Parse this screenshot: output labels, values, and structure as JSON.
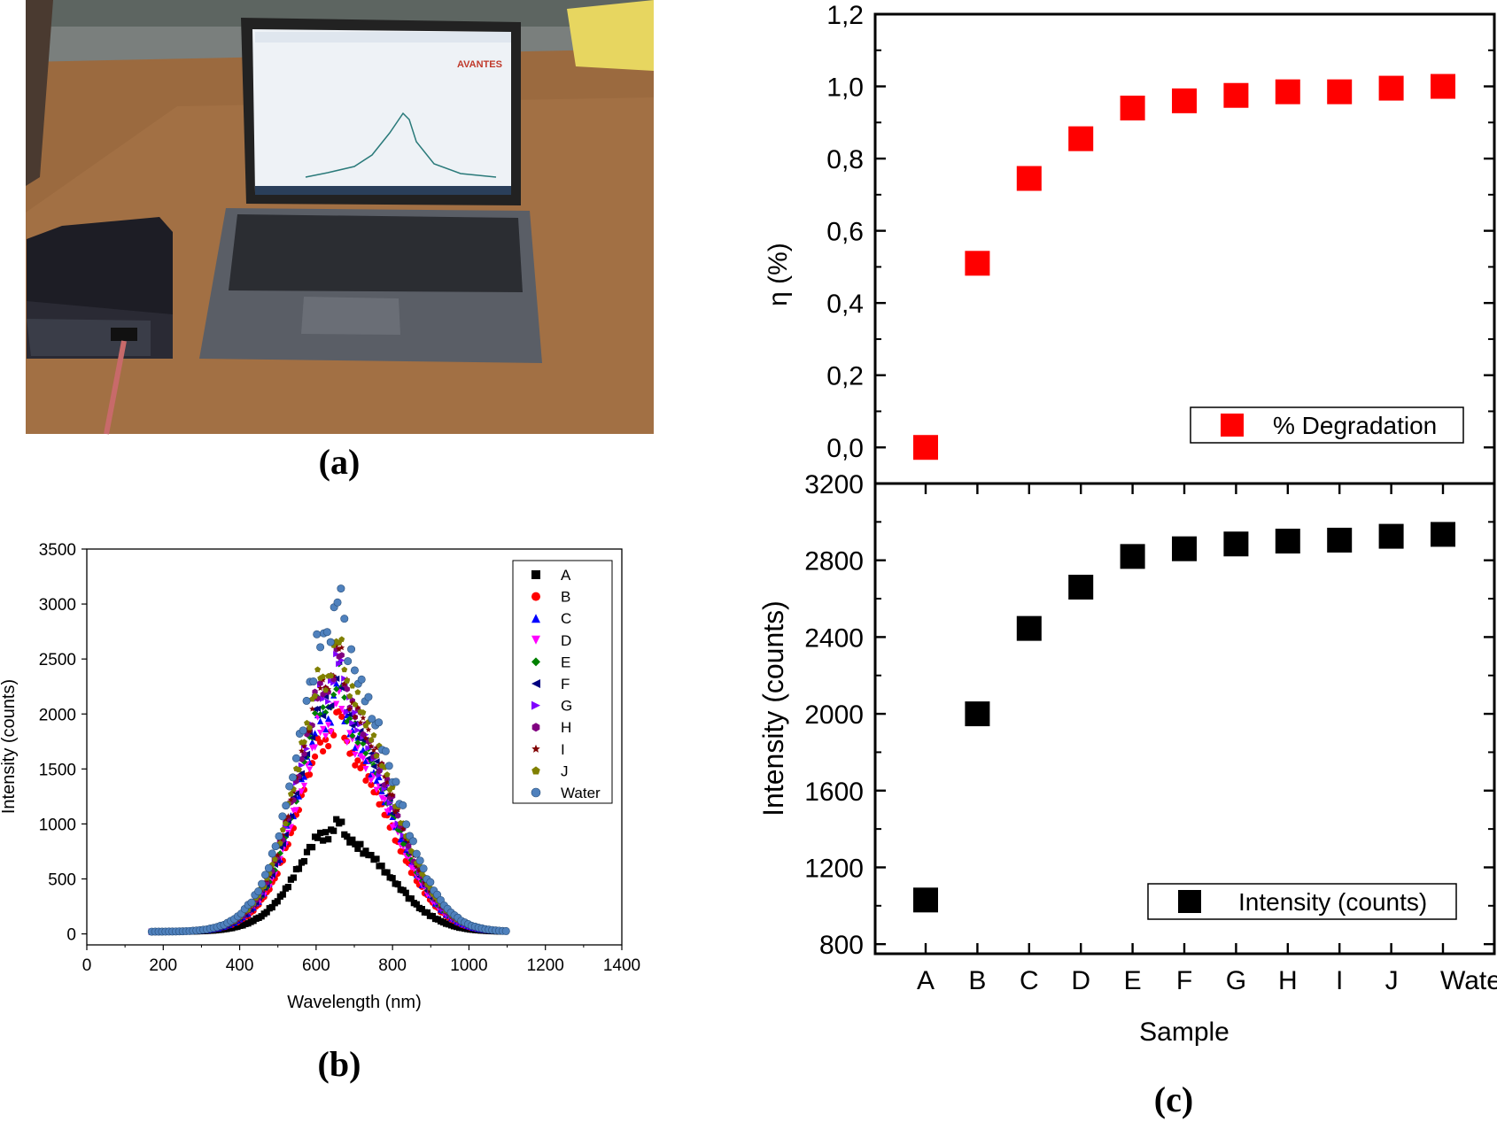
{
  "panels": {
    "a": {
      "caption": "(a)",
      "brand": "AVANTES"
    },
    "b": {
      "caption": "(b)"
    },
    "c": {
      "caption": "(c)"
    }
  },
  "chart_data": [
    {
      "id": "b",
      "type": "scatter",
      "xlabel": "Wavelength (nm)",
      "ylabel": "Intensity (counts)",
      "xlim": [
        0,
        1400
      ],
      "ylim": [
        -100,
        3500
      ],
      "x_ticks": [
        0,
        200,
        400,
        600,
        800,
        1000,
        1200,
        1400
      ],
      "y_ticks": [
        0,
        500,
        1000,
        1500,
        2000,
        2500,
        3000,
        3500
      ],
      "legend_position": "top-right",
      "spectrum_x_range": [
        170,
        1100
      ],
      "series": [
        {
          "name": "A",
          "color": "#000000",
          "marker": "square",
          "peak_x": 660,
          "peak_y": 1000,
          "shoulder_peak_y": 850
        },
        {
          "name": "B",
          "color": "#ff0000",
          "marker": "circle",
          "peak_x": 660,
          "peak_y": 1950,
          "shoulder_peak_y": 1700
        },
        {
          "name": "C",
          "color": "#0000ff",
          "marker": "triangle-up",
          "peak_x": 660,
          "peak_y": 2200,
          "shoulder_peak_y": 2000
        },
        {
          "name": "D",
          "color": "#ff00ff",
          "marker": "triangle-down",
          "peak_x": 660,
          "peak_y": 2100,
          "shoulder_peak_y": 1900
        },
        {
          "name": "E",
          "color": "#008000",
          "marker": "diamond",
          "peak_x": 660,
          "peak_y": 2300,
          "shoulder_peak_y": 2150
        },
        {
          "name": "F",
          "color": "#000080",
          "marker": "triangle-left",
          "peak_x": 660,
          "peak_y": 2350,
          "shoulder_peak_y": 2200
        },
        {
          "name": "G",
          "color": "#8000ff",
          "marker": "triangle-right",
          "peak_x": 660,
          "peak_y": 2450,
          "shoulder_peak_y": 2250
        },
        {
          "name": "H",
          "color": "#800080",
          "marker": "hexagon",
          "peak_x": 660,
          "peak_y": 2500,
          "shoulder_peak_y": 2300
        },
        {
          "name": "I",
          "color": "#800000",
          "marker": "star",
          "peak_x": 660,
          "peak_y": 2550,
          "shoulder_peak_y": 2400
        },
        {
          "name": "J",
          "color": "#808000",
          "marker": "pentagon",
          "peak_x": 660,
          "peak_y": 2650,
          "shoulder_peak_y": 2500
        },
        {
          "name": "Water",
          "color": "#4f81bd",
          "marker": "sphere",
          "peak_x": 660,
          "peak_y": 2980,
          "shoulder_peak_y": 2850
        }
      ]
    },
    {
      "id": "c-top",
      "type": "scatter",
      "ylabel": "η (%)",
      "ylim": [
        -0.1,
        1.2
      ],
      "y_ticks": [
        "0,0",
        "0,2",
        "0,4",
        "0,6",
        "0,8",
        "1,0",
        "1,2"
      ],
      "categories": [
        "A",
        "B",
        "C",
        "D",
        "E",
        "F",
        "G",
        "H",
        "I",
        "J",
        "Water"
      ],
      "series": [
        {
          "name": "% Degradation",
          "color": "#ff0000",
          "marker": "square",
          "values": [
            0.0,
            0.51,
            0.745,
            0.855,
            0.94,
            0.96,
            0.975,
            0.985,
            0.985,
            0.995,
            1.0
          ]
        }
      ],
      "legend_position": "bottom-right"
    },
    {
      "id": "c-bottom",
      "type": "scatter",
      "xlabel": "Sample",
      "ylabel": "Intensity (counts)",
      "ylim": [
        750,
        3200
      ],
      "y_ticks": [
        "800",
        "1200",
        "1600",
        "2000",
        "2400",
        "2800",
        "3200"
      ],
      "categories": [
        "A",
        "B",
        "C",
        "D",
        "E",
        "F",
        "G",
        "H",
        "I",
        "J",
        "Water"
      ],
      "series": [
        {
          "name": "Intensity (counts)",
          "color": "#000000",
          "marker": "square",
          "values": [
            1030,
            2000,
            2445,
            2660,
            2820,
            2860,
            2885,
            2900,
            2905,
            2925,
            2935
          ]
        }
      ],
      "legend_position": "bottom-right"
    }
  ]
}
